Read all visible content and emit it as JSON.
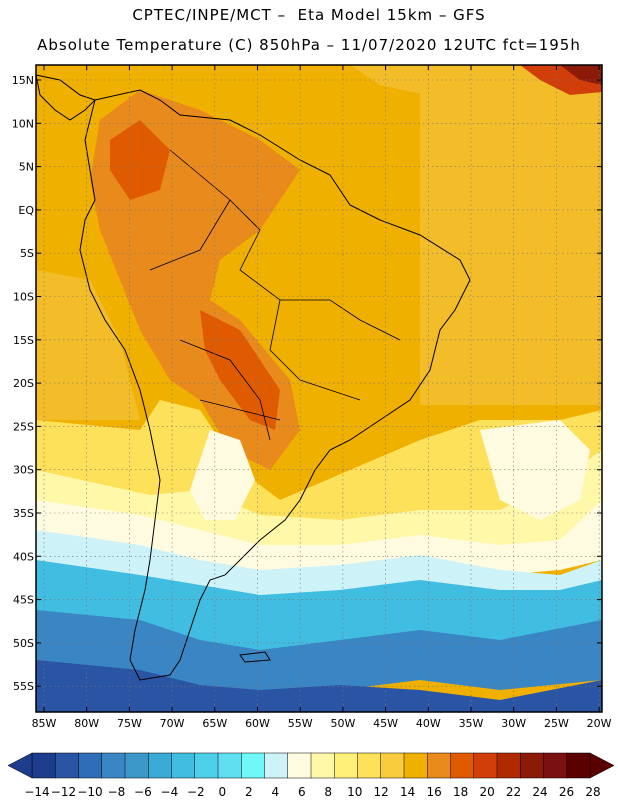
{
  "title_line1": "CPTEC/INPE/MCT –  Eta Model 15km – GFS",
  "title_line2": "Absolute Temperature (C) 850hPa – 11/07/2020 12UTC fct=195h",
  "lat_ticks": [
    "15N",
    "10N",
    "5N",
    "EQ",
    "5S",
    "10S",
    "15S",
    "20S",
    "25S",
    "30S",
    "35S",
    "40S",
    "45S",
    "50S",
    "55S"
  ],
  "lon_ticks": [
    "85W",
    "80W",
    "75W",
    "70W",
    "65W",
    "60W",
    "55W",
    "50W",
    "45W",
    "40W",
    "35W",
    "30W",
    "25W",
    "20W"
  ],
  "legend": {
    "labels": [
      "-14",
      "-12",
      "-10",
      "-8",
      "-6",
      "-4",
      "-2",
      "0",
      "2",
      "4",
      "6",
      "8",
      "10",
      "12",
      "14",
      "16",
      "18",
      "20",
      "22",
      "24",
      "26",
      "28"
    ],
    "colors": [
      "#1e3c8c",
      "#2a55a5",
      "#2f6eb6",
      "#3a86c4",
      "#3b98c9",
      "#3aa9d4",
      "#40bde0",
      "#4fd0ea",
      "#5fdff0",
      "#6ff8f8",
      "#cdf2f8",
      "#fffbe0",
      "#fff8a8",
      "#fff07a",
      "#fde15a",
      "#f8cc3c",
      "#f0b000",
      "#e88a1c",
      "#e05a00",
      "#d13e0a",
      "#b02a00",
      "#8c1a08",
      "#7a1010",
      "#5a0000"
    ]
  }
}
